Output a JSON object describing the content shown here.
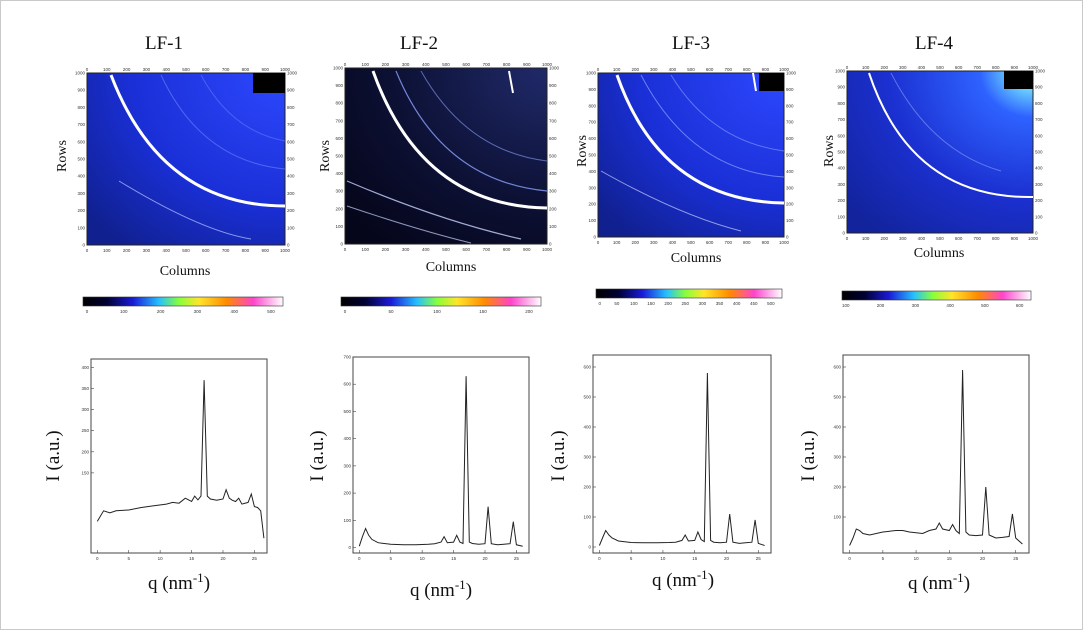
{
  "figure": {
    "panels": [
      {
        "title": "LF-1"
      },
      {
        "title": "LF-2"
      },
      {
        "title": "LF-3"
      },
      {
        "title": "LF-4"
      }
    ],
    "detector": {
      "xlabel": "Columns",
      "ylabel": "Rows"
    },
    "profile": {
      "ylabel": "I (a.u.)",
      "xlabel_main": "q (nm",
      "xlabel_sup": "-1",
      "xlabel_close": ")"
    }
  },
  "colors": {
    "detector_blue": "#1a2fd6",
    "detector_dark": "#0a0a2a",
    "ring": "#ffffff",
    "trace": "#222222"
  },
  "chart_data": [
    {
      "type": "heatmap",
      "panel": "LF-1",
      "xlabel": "Columns",
      "ylabel": "Rows",
      "xlim": [
        0,
        1000
      ],
      "ylim": [
        0,
        1000
      ],
      "xticks": [
        0,
        100,
        200,
        300,
        400,
        500,
        600,
        700,
        800,
        900,
        1000
      ],
      "yticks": [
        0,
        100,
        200,
        300,
        400,
        500,
        600,
        700,
        800,
        900,
        1000
      ],
      "colorbar_ticks": [
        0,
        100,
        200,
        300,
        400,
        500
      ]
    },
    {
      "type": "heatmap",
      "panel": "LF-2",
      "xlabel": "Columns",
      "ylabel": "Rows",
      "xlim": [
        0,
        1000
      ],
      "ylim": [
        0,
        1000
      ],
      "xticks": [
        0,
        100,
        200,
        300,
        400,
        500,
        600,
        700,
        800,
        900,
        1000
      ],
      "yticks": [
        0,
        100,
        200,
        300,
        400,
        500,
        600,
        700,
        800,
        900,
        1000
      ],
      "colorbar_ticks": [
        0,
        50,
        100,
        150,
        200
      ]
    },
    {
      "type": "heatmap",
      "panel": "LF-3",
      "xlabel": "Columns",
      "ylabel": "Rows",
      "xlim": [
        0,
        1000
      ],
      "ylim": [
        0,
        1000
      ],
      "xticks": [
        0,
        100,
        200,
        300,
        400,
        500,
        600,
        700,
        800,
        900,
        1000
      ],
      "yticks": [
        0,
        100,
        200,
        300,
        400,
        500,
        600,
        700,
        800,
        900,
        1000
      ],
      "colorbar_ticks": [
        0,
        50,
        100,
        150,
        200,
        250,
        300,
        350,
        400,
        450,
        500
      ]
    },
    {
      "type": "heatmap",
      "panel": "LF-4",
      "xlabel": "Columns",
      "ylabel": "Rows",
      "xlim": [
        0,
        1000
      ],
      "ylim": [
        0,
        1000
      ],
      "xticks": [
        0,
        100,
        200,
        300,
        400,
        500,
        600,
        700,
        800,
        900,
        1000
      ],
      "yticks": [
        0,
        100,
        200,
        300,
        400,
        500,
        600,
        700,
        800,
        900,
        1000
      ],
      "colorbar_ticks": [
        100,
        200,
        300,
        400,
        500,
        600
      ]
    },
    {
      "type": "line",
      "panel": "LF-1",
      "xlabel": "q (nm-1)",
      "ylabel": "I (a.u.)",
      "xlim": [
        -1,
        27
      ],
      "ylim": [
        -40,
        420
      ],
      "xticks": [
        0,
        5,
        10,
        15,
        20,
        25
      ],
      "yticks": [
        150,
        200,
        250,
        300,
        350,
        400
      ],
      "x": [
        0,
        1,
        2,
        3,
        5,
        7,
        9,
        11,
        12,
        13,
        14,
        15,
        15.5,
        16,
        16.5,
        17,
        17.5,
        18,
        19,
        20,
        20.5,
        21,
        21.5,
        22,
        22.5,
        23,
        24,
        24.5,
        25,
        25.5,
        26,
        26.5
      ],
      "y": [
        35,
        60,
        55,
        60,
        62,
        68,
        72,
        76,
        80,
        78,
        90,
        82,
        95,
        86,
        95,
        370,
        95,
        88,
        85,
        88,
        110,
        90,
        85,
        82,
        90,
        76,
        80,
        100,
        70,
        68,
        60,
        -5
      ]
    },
    {
      "type": "line",
      "panel": "LF-2",
      "xlabel": "q (nm-1)",
      "ylabel": "I (a.u.)",
      "xlim": [
        -1,
        27
      ],
      "ylim": [
        -20,
        700
      ],
      "xticks": [
        0,
        5,
        10,
        15,
        20,
        25
      ],
      "yticks": [
        0,
        100,
        200,
        300,
        400,
        500,
        600,
        700
      ],
      "x": [
        0,
        0.5,
        1,
        1.5,
        2,
        3,
        5,
        7,
        9,
        11,
        12,
        13,
        13.5,
        14,
        15,
        15.5,
        16,
        16.5,
        17,
        17.5,
        18,
        19,
        20,
        20.5,
        21,
        21.5,
        22,
        23,
        24,
        24.5,
        25,
        26
      ],
      "y": [
        5,
        40,
        70,
        45,
        30,
        18,
        12,
        10,
        10,
        12,
        14,
        20,
        40,
        18,
        20,
        45,
        20,
        15,
        630,
        20,
        15,
        12,
        14,
        150,
        14,
        12,
        10,
        12,
        14,
        95,
        10,
        5
      ]
    },
    {
      "type": "line",
      "panel": "LF-3",
      "xlabel": "q (nm-1)",
      "ylabel": "I (a.u.)",
      "xlim": [
        -1,
        27
      ],
      "ylim": [
        -20,
        640
      ],
      "xticks": [
        0,
        5,
        10,
        15,
        20,
        25
      ],
      "yticks": [
        0,
        100,
        200,
        300,
        400,
        500,
        600
      ],
      "x": [
        0,
        0.5,
        1,
        1.5,
        2,
        3,
        5,
        7,
        9,
        11,
        12,
        13,
        13.5,
        14,
        15,
        15.5,
        16,
        16.5,
        17,
        17.5,
        18,
        19,
        20,
        20.5,
        21,
        21.5,
        22,
        23,
        24,
        24.5,
        25,
        26
      ],
      "y": [
        5,
        30,
        55,
        40,
        30,
        20,
        15,
        14,
        14,
        15,
        16,
        22,
        40,
        20,
        22,
        50,
        25,
        18,
        580,
        22,
        16,
        14,
        16,
        110,
        16,
        14,
        12,
        14,
        16,
        90,
        12,
        5
      ]
    },
    {
      "type": "line",
      "panel": "LF-4",
      "xlabel": "q (nm-1)",
      "ylabel": "I (a.u.)",
      "xlim": [
        -1,
        27
      ],
      "ylim": [
        -20,
        640
      ],
      "xticks": [
        0,
        5,
        10,
        15,
        20,
        25
      ],
      "yticks": [
        100,
        200,
        300,
        400,
        500,
        600
      ],
      "x": [
        0,
        0.5,
        1,
        1.5,
        2,
        3,
        5,
        7,
        8,
        9,
        11,
        12,
        13,
        13.5,
        14,
        15,
        15.5,
        16,
        16.5,
        17,
        17.5,
        18,
        19,
        20,
        20.5,
        21,
        21.5,
        22,
        23,
        24,
        24.5,
        25,
        26
      ],
      "y": [
        5,
        30,
        60,
        55,
        45,
        40,
        50,
        55,
        55,
        50,
        45,
        55,
        60,
        80,
        60,
        55,
        75,
        55,
        45,
        590,
        50,
        40,
        38,
        40,
        200,
        40,
        35,
        30,
        32,
        35,
        110,
        30,
        10
      ]
    }
  ]
}
